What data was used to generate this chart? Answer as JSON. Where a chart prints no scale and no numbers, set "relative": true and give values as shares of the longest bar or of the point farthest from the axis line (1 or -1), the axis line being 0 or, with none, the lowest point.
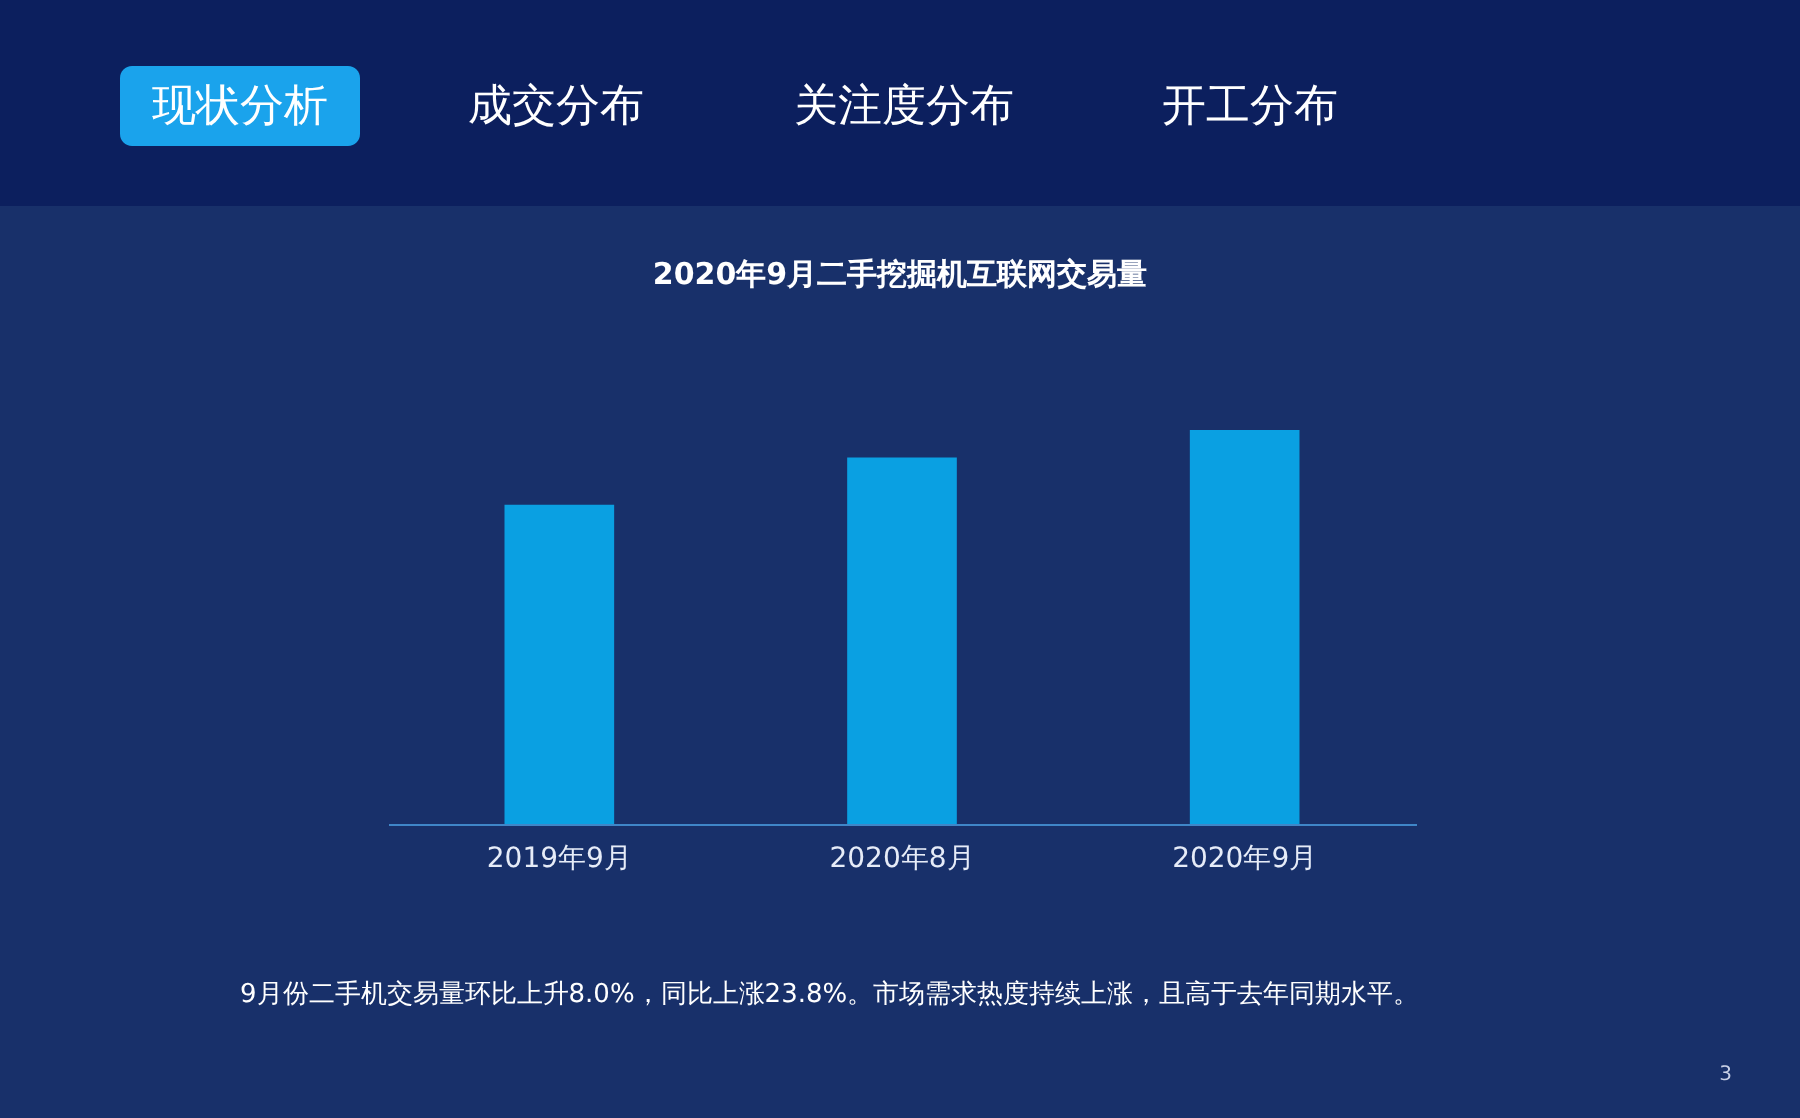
{
  "chart_data": {
    "type": "bar",
    "title": "2020年9月二手挖掘机互联网交易量",
    "categories": [
      "2019年9月",
      "2020年8月",
      "2020年9月"
    ],
    "values": [
      0.81,
      0.93,
      1
    ],
    "color": "#0aa0e2",
    "relative": true,
    "annotations": [
      "现状分析",
      "成交分布",
      "关注度分布",
      "开工分布",
      "9月份二手机交易量环比上升8.0%，同比上涨23.8%。市场需求热度持续上涨，且高于去年同期水平。",
      "3"
    ]
  }
}
